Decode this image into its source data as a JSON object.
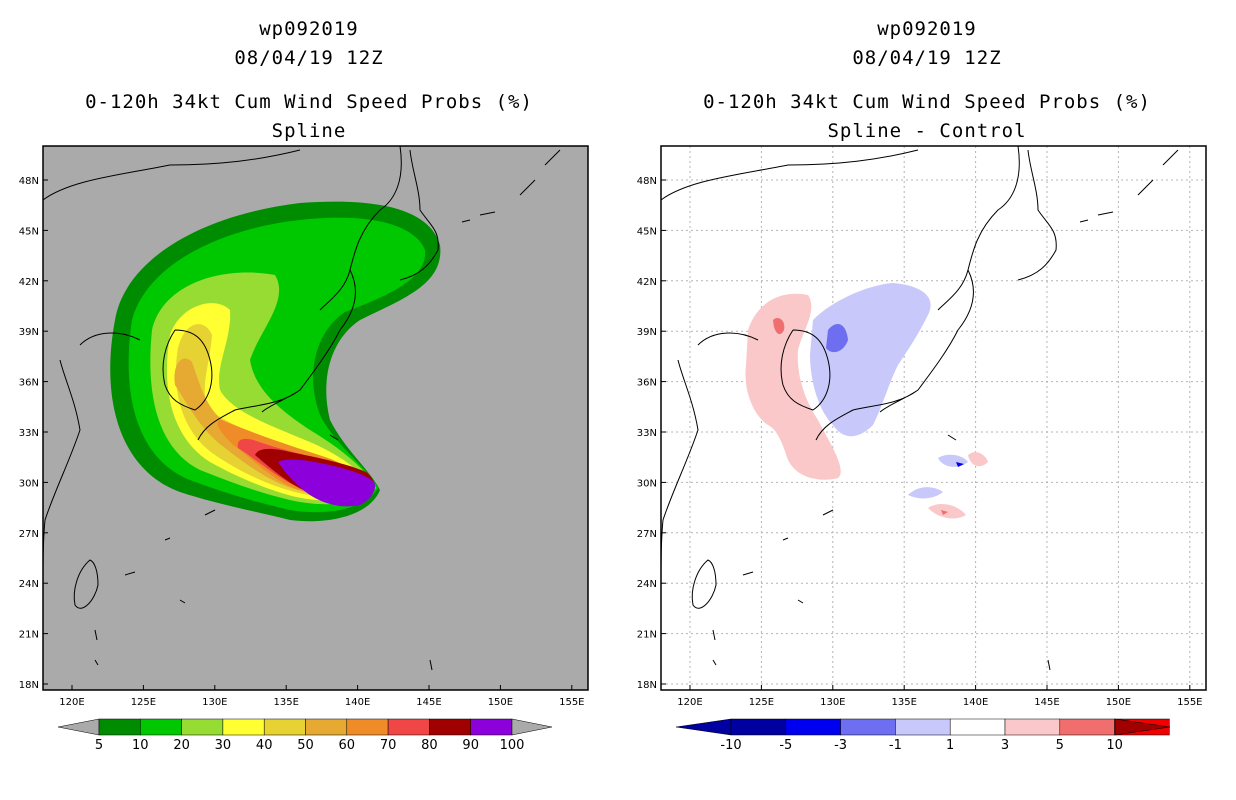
{
  "left": {
    "storm_id": "wp092019",
    "datetime": "08/04/19 12Z",
    "product": "0-120h 34kt Cum Wind Speed Probs (%)",
    "subtitle": "Spline",
    "colorbar": {
      "labels": [
        "5",
        "10",
        "20",
        "30",
        "40",
        "50",
        "60",
        "70",
        "80",
        "90",
        "100"
      ],
      "colors": [
        "#008c00",
        "#00c800",
        "#96dc32",
        "#ffff32",
        "#e6d232",
        "#e6aa32",
        "#f08c28",
        "#f04646",
        "#a00000",
        "#8c00dc"
      ]
    }
  },
  "right": {
    "storm_id": "wp092019",
    "datetime": "08/04/19 12Z",
    "product": "0-120h 34kt Cum Wind Speed Probs (%)",
    "subtitle": "Spline - Control",
    "colorbar": {
      "labels": [
        "-10",
        "-5",
        "-3",
        "-1",
        "1",
        "3",
        "5",
        "10"
      ],
      "colors": [
        "#0000a0",
        "#0000f0",
        "#6e6ef0",
        "#c8c8fa",
        "#ffffff",
        "#fac8c8",
        "#f06e6e",
        "#f00000"
      ]
    }
  },
  "axes": {
    "lat_labels": [
      "48N",
      "45N",
      "42N",
      "39N",
      "36N",
      "33N",
      "30N",
      "27N",
      "24N",
      "21N",
      "18N"
    ],
    "lon_labels": [
      "120E",
      "125E",
      "130E",
      "135E",
      "140E",
      "145E",
      "150E",
      "155E"
    ]
  }
}
